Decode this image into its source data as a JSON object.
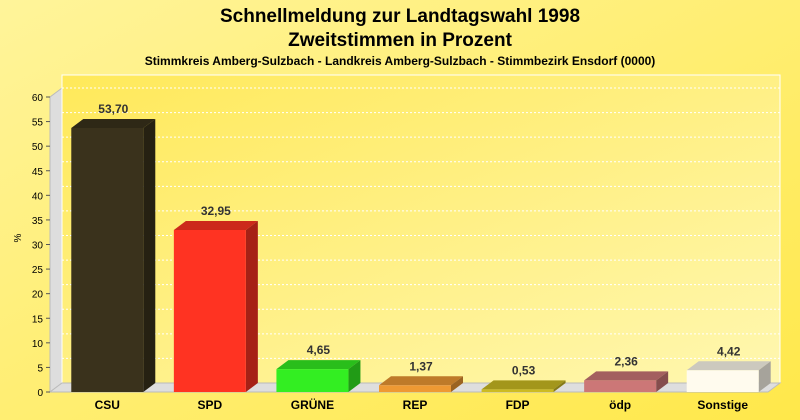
{
  "chart_data": {
    "type": "bar",
    "title": "Schnellmeldung zur Landtagswahl 1998",
    "subtitle": "Zweitstimmen in Prozent",
    "caption": "Stimmkreis Amberg-Sulzbach - Landkreis Amberg-Sulzbach - Stimmbezirk Ensdorf (0000)",
    "xlabel": "",
    "ylabel": "%",
    "ylim": [
      0,
      60
    ],
    "yticks": [
      0,
      5,
      10,
      15,
      20,
      25,
      30,
      35,
      40,
      45,
      50,
      55,
      60
    ],
    "grid": true,
    "categories": [
      "CSU",
      "SPD",
      "GRÜNE",
      "REP",
      "FDP",
      "ödp",
      "Sonstige"
    ],
    "values": [
      53.7,
      32.95,
      4.65,
      1.37,
      0.53,
      2.36,
      4.42
    ],
    "value_labels": [
      "53,70",
      "32,95",
      "4,65",
      "1,37",
      "0,53",
      "2,36",
      "4,42"
    ],
    "colors": [
      "#3a321c",
      "#ff3322",
      "#33ee22",
      "#ee9933",
      "#ccbb22",
      "#cc7777",
      "#fffbee"
    ]
  }
}
